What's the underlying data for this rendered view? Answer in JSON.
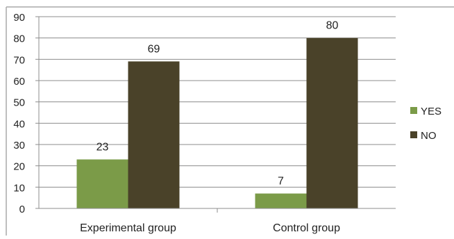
{
  "chart_data": {
    "type": "bar",
    "categories": [
      "Experimental group",
      "Control group"
    ],
    "series": [
      {
        "name": "YES",
        "values": [
          23,
          7
        ],
        "color": "#7b9b48"
      },
      {
        "name": "NO",
        "values": [
          69,
          80
        ],
        "color": "#4a4229"
      }
    ],
    "yticks": [
      0,
      10,
      20,
      30,
      40,
      50,
      60,
      70,
      80,
      90
    ],
    "ylim": [
      0,
      90
    ],
    "grid": true,
    "legend_position": "right",
    "data_labels": true
  }
}
